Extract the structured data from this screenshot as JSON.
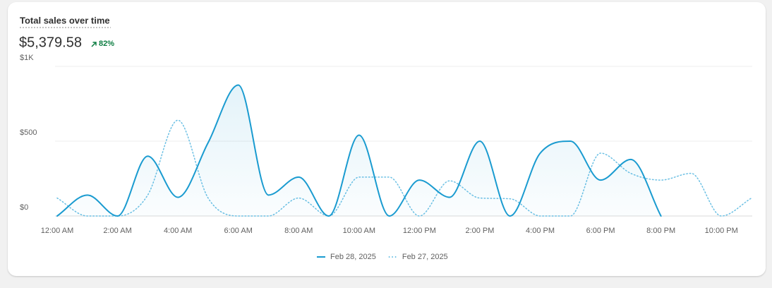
{
  "chart_data": {
    "type": "line",
    "title": "Total sales over time",
    "total": "$5,379.58",
    "change": "82%",
    "categories": [
      "12:00 AM",
      null,
      "2:00 AM",
      null,
      "4:00 AM",
      null,
      "6:00 AM",
      null,
      "8:00 AM",
      null,
      "10:00 AM",
      null,
      "12:00 PM",
      null,
      "2:00 PM",
      null,
      "4:00 PM",
      null,
      "6:00 PM",
      null,
      "8:00 PM",
      null,
      "10:00 PM",
      null
    ],
    "series": [
      {
        "name": "Feb 28, 2025",
        "color": "#1a9bd0",
        "style": "solid",
        "area": true,
        "values": [
          0,
          140,
          0,
          400,
          125,
          490,
          875,
          140,
          260,
          0,
          540,
          0,
          240,
          125,
          500,
          0,
          420,
          500,
          240,
          378,
          0,
          null,
          null,
          null
        ]
      },
      {
        "name": "Feb 27, 2025",
        "color": "#6cc0e4",
        "style": "dotted",
        "area": false,
        "values": [
          120,
          0,
          0,
          140,
          640,
          120,
          0,
          0,
          120,
          0,
          260,
          260,
          0,
          235,
          120,
          115,
          0,
          0,
          420,
          285,
          240,
          285,
          0,
          120
        ]
      }
    ],
    "ylim": [
      0,
      1000
    ],
    "yticks": [
      {
        "value": 0,
        "label": "$0"
      },
      {
        "value": 500,
        "label": "$500"
      },
      {
        "value": 1000,
        "label": "$1K"
      }
    ],
    "grid": true
  }
}
